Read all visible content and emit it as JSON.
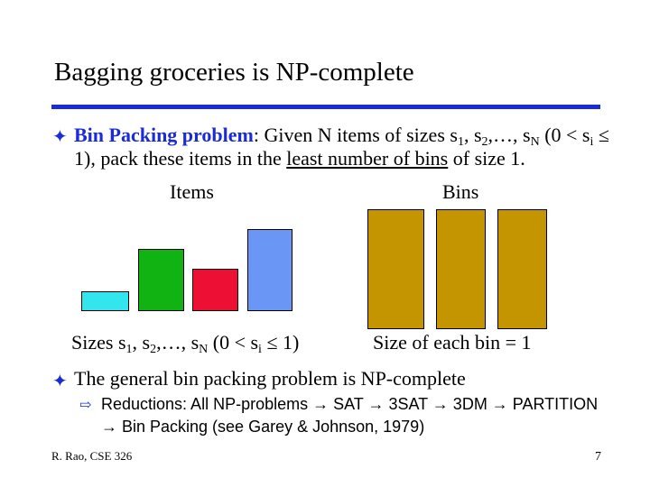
{
  "slide": {
    "title": "Bagging groceries is NP-complete",
    "bullet1": {
      "term": "Bin Packing problem",
      "text_a": ": Given N items of sizes s",
      "sub1": "1",
      "text_b": ", s",
      "sub2": "2",
      "text_c": ",…, s",
      "subN": "N",
      "text_d": " (0 < s",
      "subi": "i",
      "text_e": " ≤ 1), pack these items in the ",
      "underlined": "least number of bins",
      "text_f": " of size 1."
    },
    "items_label": "Items",
    "bins_label": "Bins",
    "sizes_label": {
      "a": "Sizes s",
      "s1": "1",
      "b": ", s",
      "s2": "2",
      "c": ",…, s",
      "sN": "N",
      "d": " (0 < s",
      "si": "i",
      "e": " ≤ 1)"
    },
    "bin_size_label": "Size of each bin = 1",
    "bullet2": "The general bin packing problem is NP-complete",
    "sub_bullet": "Reductions: All NP-problems → SAT → 3SAT → 3DM → PARTITION → Bin Packing (see Garey & Johnson, 1979)",
    "footer": "R. Rao, CSE 326",
    "page_number": "7",
    "items_colors": [
      "#33e6ee",
      "#10b312",
      "#ee0f34",
      "#6a96f6"
    ],
    "bin_color": "#c59500"
  }
}
